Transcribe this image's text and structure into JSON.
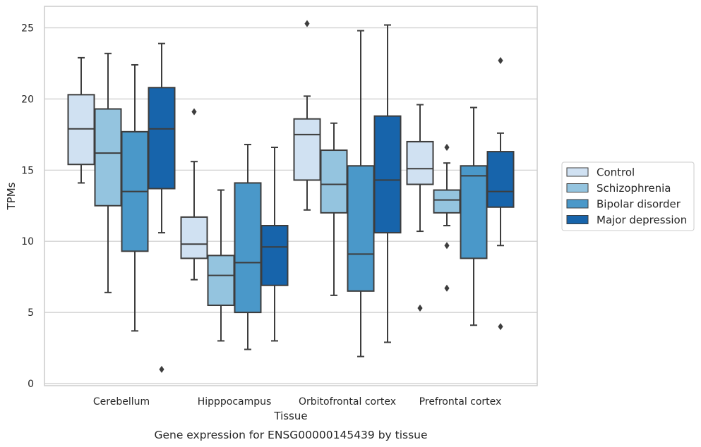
{
  "chart_data": {
    "type": "box",
    "title": "",
    "caption": "Gene expression for ENSG00000145439 by tissue",
    "xlabel": "Tissue",
    "ylabel": "TPMs",
    "ylim": [
      0,
      26.5
    ],
    "yticks": [
      0,
      5,
      10,
      15,
      20,
      25
    ],
    "grid": "horizontal",
    "legend_position": "right",
    "categories": [
      "Cerebellum",
      "Hipppocampus",
      "Orbitofrontal cortex",
      "Prefrontal cortex"
    ],
    "series": [
      {
        "name": "Control",
        "color": "#d0e1f2",
        "boxes": [
          {
            "whisker_low": 14.1,
            "q1": 15.4,
            "median": 17.9,
            "q3": 20.3,
            "whisker_high": 22.9,
            "outliers": []
          },
          {
            "whisker_low": 7.3,
            "q1": 8.8,
            "median": 9.8,
            "q3": 11.7,
            "whisker_high": 15.6,
            "outliers": [
              19.1
            ]
          },
          {
            "whisker_low": 12.2,
            "q1": 14.3,
            "median": 17.5,
            "q3": 18.6,
            "whisker_high": 20.2,
            "outliers": [
              25.3
            ]
          },
          {
            "whisker_low": 10.7,
            "q1": 14.0,
            "median": 15.1,
            "q3": 17.0,
            "whisker_high": 19.6,
            "outliers": [
              5.3
            ]
          }
        ]
      },
      {
        "name": "Schizophrenia",
        "color": "#94c4df",
        "boxes": [
          {
            "whisker_low": 6.4,
            "q1": 12.5,
            "median": 16.2,
            "q3": 19.3,
            "whisker_high": 23.2,
            "outliers": []
          },
          {
            "whisker_low": 3.0,
            "q1": 5.5,
            "median": 7.6,
            "q3": 9.0,
            "whisker_high": 13.6,
            "outliers": []
          },
          {
            "whisker_low": 6.2,
            "q1": 12.0,
            "median": 14.0,
            "q3": 16.4,
            "whisker_high": 18.3,
            "outliers": []
          },
          {
            "whisker_low": 11.1,
            "q1": 12.0,
            "median": 12.9,
            "q3": 13.6,
            "whisker_high": 15.5,
            "outliers": [
              16.6,
              9.7,
              6.7
            ]
          }
        ]
      },
      {
        "name": "Bipolar disorder",
        "color": "#4a98c9",
        "boxes": [
          {
            "whisker_low": 3.7,
            "q1": 9.3,
            "median": 13.5,
            "q3": 17.7,
            "whisker_high": 22.4,
            "outliers": []
          },
          {
            "whisker_low": 2.4,
            "q1": 5.0,
            "median": 8.5,
            "q3": 14.1,
            "whisker_high": 16.8,
            "outliers": []
          },
          {
            "whisker_low": 1.9,
            "q1": 6.5,
            "median": 9.1,
            "q3": 15.3,
            "whisker_high": 24.8,
            "outliers": []
          },
          {
            "whisker_low": 4.1,
            "q1": 8.8,
            "median": 14.6,
            "q3": 15.3,
            "whisker_high": 19.4,
            "outliers": []
          }
        ]
      },
      {
        "name": "Major depression",
        "color": "#1764ab",
        "boxes": [
          {
            "whisker_low": 10.6,
            "q1": 13.7,
            "median": 17.9,
            "q3": 20.8,
            "whisker_high": 23.9,
            "outliers": [
              1.0
            ]
          },
          {
            "whisker_low": 3.0,
            "q1": 6.9,
            "median": 9.6,
            "q3": 11.1,
            "whisker_high": 16.6,
            "outliers": []
          },
          {
            "whisker_low": 2.9,
            "q1": 10.6,
            "median": 14.3,
            "q3": 18.8,
            "whisker_high": 25.2,
            "outliers": []
          },
          {
            "whisker_low": 9.7,
            "q1": 12.4,
            "median": 13.5,
            "q3": 16.3,
            "whisker_high": 17.6,
            "outliers": [
              22.7,
              4.0
            ]
          }
        ]
      }
    ]
  }
}
